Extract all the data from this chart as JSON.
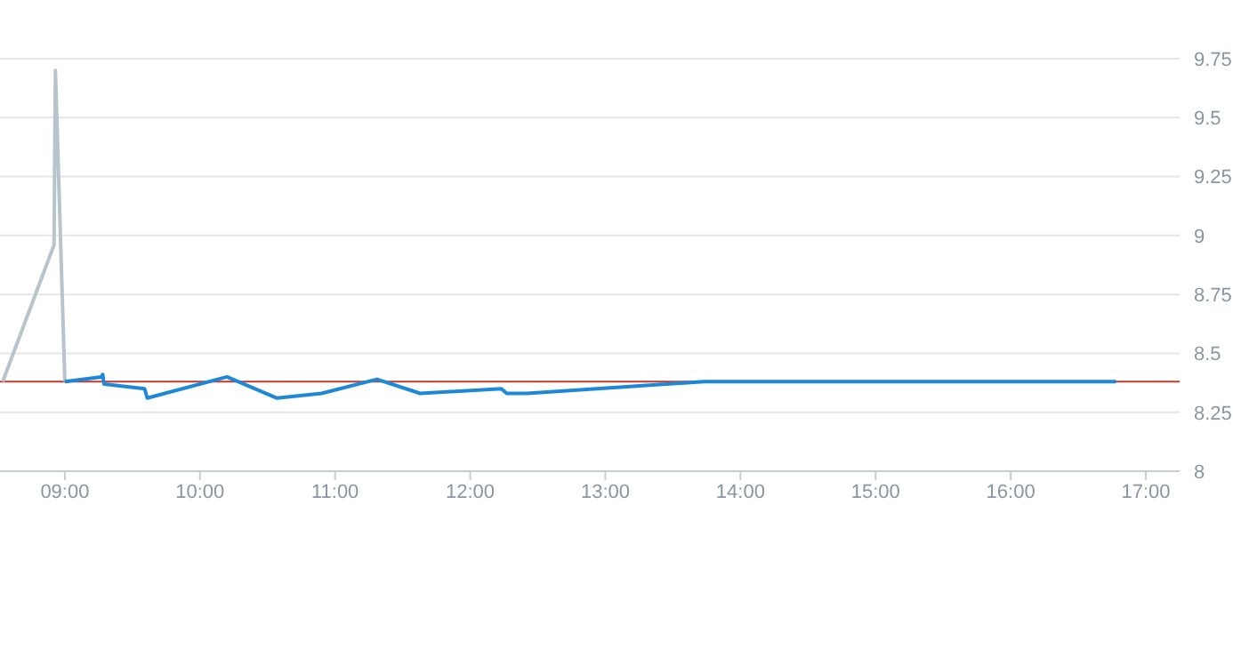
{
  "chart_data": {
    "type": "line",
    "xlim": [
      8.52,
      17.25
    ],
    "ylim": [
      8,
      9.75
    ],
    "xticks": [
      {
        "value": 9,
        "label": "09:00"
      },
      {
        "value": 10,
        "label": "10:00"
      },
      {
        "value": 11,
        "label": "11:00"
      },
      {
        "value": 12,
        "label": "12:00"
      },
      {
        "value": 13,
        "label": "13:00"
      },
      {
        "value": 14,
        "label": "14:00"
      },
      {
        "value": 15,
        "label": "15:00"
      },
      {
        "value": 16,
        "label": "16:00"
      },
      {
        "value": 17,
        "label": "17:00"
      }
    ],
    "yticks": [
      8,
      8.25,
      8.5,
      8.75,
      9,
      9.25,
      9.5,
      9.75
    ],
    "series": [
      {
        "color": "#b8c4cc",
        "x": [
          8.54,
          8.92,
          8.93,
          9.0
        ],
        "values": [
          8.38,
          8.96,
          9.7,
          8.38
        ]
      },
      {
        "color": "#1e88d8",
        "x": [
          9.0,
          9.27,
          9.28,
          9.29,
          9.59,
          9.61,
          10.2,
          10.57,
          10.9,
          11.31,
          11.63,
          12.23,
          12.27,
          12.42,
          13.73,
          16.78
        ],
        "values": [
          8.38,
          8.4,
          8.41,
          8.37,
          8.35,
          8.31,
          8.4,
          8.31,
          8.33,
          8.39,
          8.33,
          8.35,
          8.33,
          8.33,
          8.38,
          8.38
        ]
      }
    ],
    "ref_lines": [
      {
        "axis": "y",
        "value": 8.38,
        "color": "#c0392b"
      }
    ],
    "grid": "y",
    "legend": false,
    "marker": "none",
    "line_style": "solid"
  }
}
